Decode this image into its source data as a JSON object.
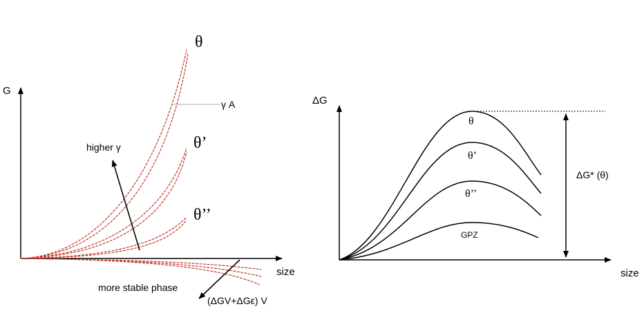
{
  "left_diagram": {
    "y_axis_label": "G",
    "x_axis_label": "size",
    "curve_labels": [
      "θ",
      "θ’",
      "θ’’"
    ],
    "surface_term": "γ A",
    "higher_gamma_label": "higher γ",
    "stable_phase_label": "more stable phase",
    "volume_term": "(ΔGV+ΔGε) V"
  },
  "right_diagram": {
    "y_axis_label": "ΔG",
    "x_axis_label": "size",
    "curve_labels": [
      "θ",
      "θ’",
      "θ’’",
      "GPZ"
    ],
    "barrier_label": "ΔG* (θ)"
  }
}
